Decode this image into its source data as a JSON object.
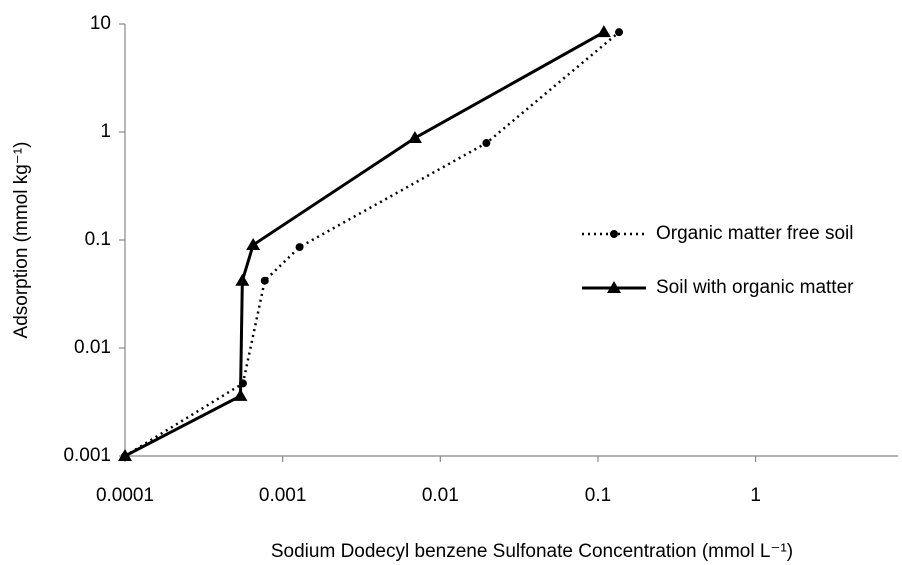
{
  "chart_data": {
    "type": "line",
    "x_label": "Sodium Dodecyl benzene Sulfonate Concentration (mmol L⁻¹)",
    "y_label": "Adsorption (mmol kg⁻¹)",
    "x_log": true,
    "y_log": true,
    "xlim": [
      0.0001,
      8
    ],
    "xticks": [
      0.0001,
      0.001,
      0.01,
      0.1,
      1
    ],
    "ylim": [
      0.001,
      10
    ],
    "yticks": [
      0.001,
      0.01,
      0.1,
      1,
      10
    ],
    "legend": "right",
    "series": [
      {
        "name": "Organic matter free soil",
        "color": "#000000",
        "dash": "dotted",
        "marker": "circle",
        "x": [
          0.0001,
          0.00056,
          0.00077,
          0.00128,
          0.0196,
          0.136
        ],
        "values": [
          0.001,
          0.0047,
          0.042,
          0.086,
          0.79,
          8.4
        ]
      },
      {
        "name": "Soil with organic matter",
        "color": "#000000",
        "dash": "solid",
        "marker": "triangle",
        "x": [
          0.0001,
          0.00054,
          0.000555,
          0.00065,
          0.0069,
          0.109
        ],
        "values": [
          0.001,
          0.0036,
          0.042,
          0.09,
          0.88,
          8.4
        ]
      }
    ]
  }
}
